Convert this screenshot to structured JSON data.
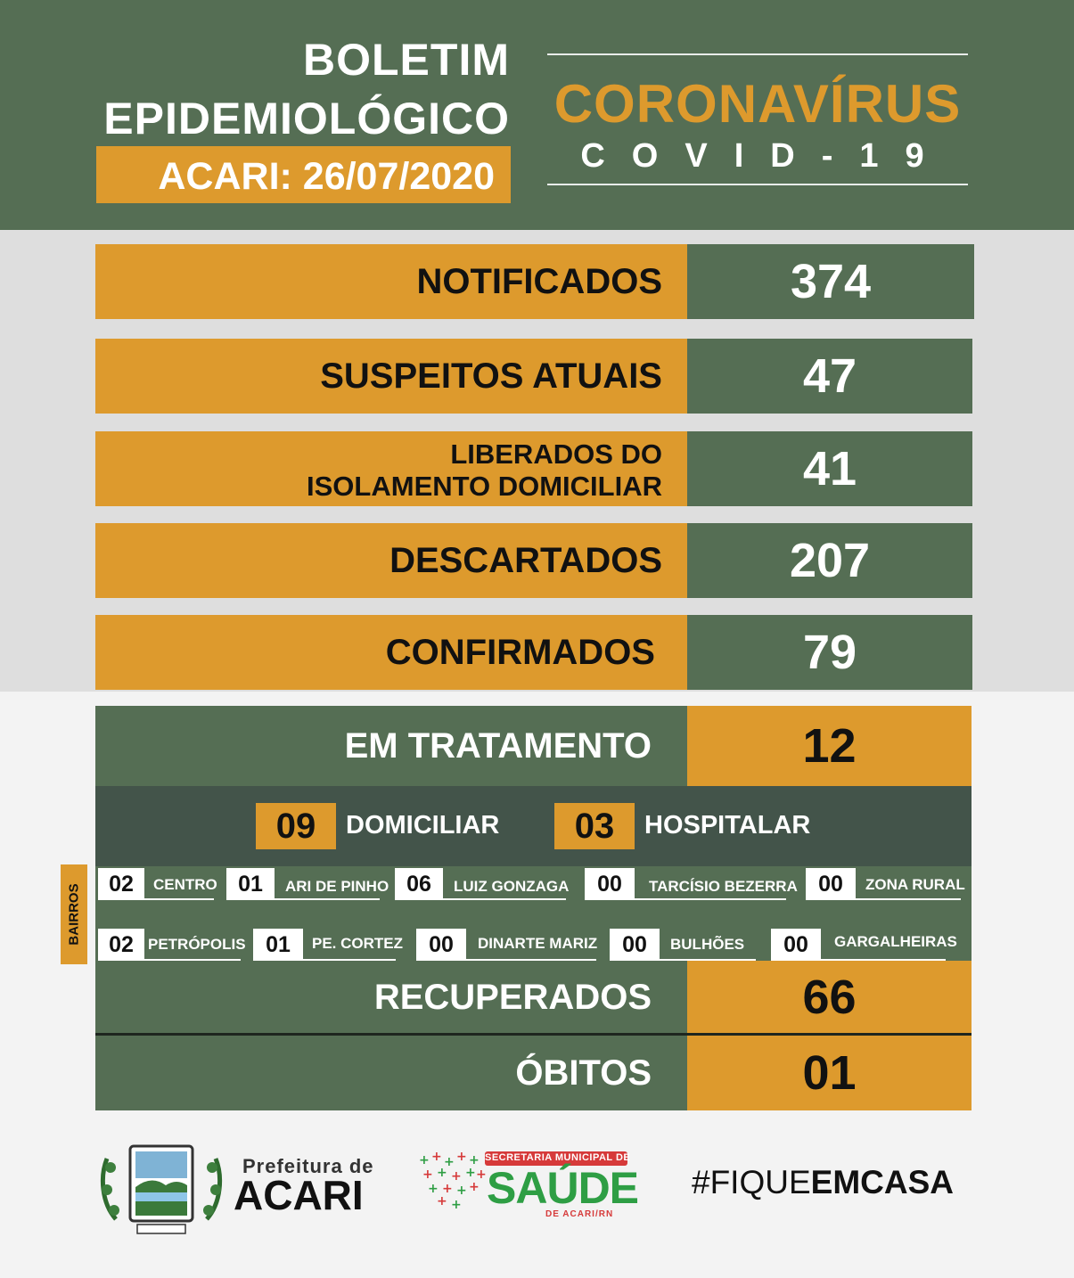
{
  "header": {
    "title_line1": "BOLETIM",
    "title_line2": "EPIDEMIOLÓGICO",
    "date": "ACARI: 26/07/2020",
    "brand": "CORONAVÍRUS",
    "sub": "COVID-19"
  },
  "stats": [
    {
      "label": "NOTIFICADOS",
      "value": "374"
    },
    {
      "label": "SUSPEITOS ATUAIS",
      "value": "47"
    },
    {
      "label_line1": "LIBERADOS DO",
      "label_line2": "ISOLAMENTO DOMICILIAR",
      "value": "41"
    },
    {
      "label": "DESCARTADOS",
      "value": "207"
    },
    {
      "label": "CONFIRMADOS",
      "value": "79"
    }
  ],
  "treatment": {
    "label": "EM TRATAMENTO",
    "value": "12",
    "home_value": "09",
    "home_label": "DOMICILIAR",
    "hospital_value": "03",
    "hospital_label": "HOSPITALAR"
  },
  "bairros": {
    "title": "BAIRROS",
    "row1": [
      {
        "n": "02",
        "name": "CENTRO"
      },
      {
        "n": "01",
        "name": "ARI DE PINHO"
      },
      {
        "n": "06",
        "name": "LUIZ GONZAGA"
      },
      {
        "n": "00",
        "name": "TARCÍSIO BEZERRA"
      },
      {
        "n": "00",
        "name": "ZONA RURAL"
      }
    ],
    "row2": [
      {
        "n": "02",
        "name": "PETRÓPOLIS"
      },
      {
        "n": "01",
        "name": "PE. CORTEZ"
      },
      {
        "n": "00",
        "name": "DINARTE MARIZ"
      },
      {
        "n": "00",
        "name": "BULHÕES"
      },
      {
        "n": "00",
        "name": "GARGALHEIRAS"
      }
    ]
  },
  "outcomes": [
    {
      "label": "RECUPERADOS",
      "value": "66"
    },
    {
      "label": "ÓBITOS",
      "value": "01"
    }
  ],
  "footer": {
    "pref_line1": "Prefeitura de",
    "pref_line2": "ACARI",
    "saude_top": "SECRETARIA MUNICIPAL DE",
    "saude_main": "SAÚDE",
    "saude_bottom": "DE ACARI/RN",
    "hashtag_a": "#FIQUE",
    "hashtag_b": "EMCASA"
  },
  "colors": {
    "green": "#556e54",
    "orange": "#dd9a2d",
    "dark_green": "#43544a"
  }
}
